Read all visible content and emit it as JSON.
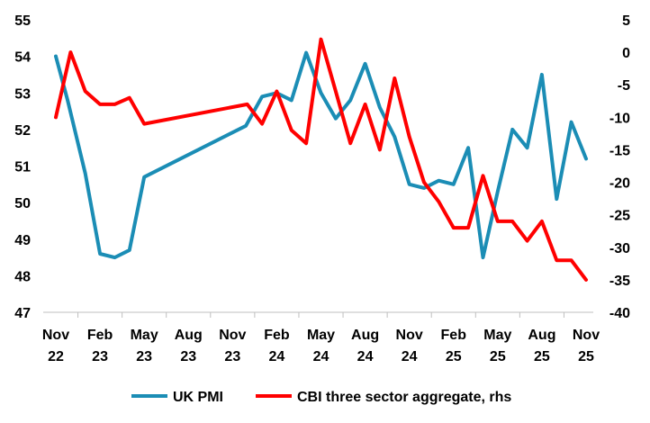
{
  "chart_data": {
    "type": "line",
    "title": "",
    "xlabel": "",
    "ylabel": "",
    "y_left_lim": [
      47,
      55
    ],
    "y_left_ticks": [
      "47",
      "48",
      "49",
      "50",
      "51",
      "52",
      "53",
      "54",
      "55"
    ],
    "y_right_lim": [
      -40,
      5
    ],
    "y_right_ticks": [
      "-40",
      "-35",
      "-30",
      "-25",
      "-20",
      "-15",
      "-10",
      "-5",
      "0",
      "5"
    ],
    "x_ticks": [
      {
        "line1": "Nov",
        "line2": "22",
        "month": 0
      },
      {
        "line1": "Feb",
        "line2": "23",
        "month": 3
      },
      {
        "line1": "May",
        "line2": "23",
        "month": 6
      },
      {
        "line1": "Aug",
        "line2": "23",
        "month": 9
      },
      {
        "line1": "Nov",
        "line2": "23",
        "month": 12
      },
      {
        "line1": "Feb",
        "line2": "24",
        "month": 15
      },
      {
        "line1": "May",
        "line2": "24",
        "month": 18
      },
      {
        "line1": "Aug",
        "line2": "24",
        "month": 21
      },
      {
        "line1": "Nov",
        "line2": "24",
        "month": 24
      },
      {
        "line1": "Feb",
        "line2": "25",
        "month": 27
      },
      {
        "line1": "May",
        "line2": "25",
        "month": 30
      },
      {
        "line1": "Aug",
        "line2": "25",
        "month": 33
      },
      {
        "line1": "Nov",
        "line2": "25",
        "month": 36
      }
    ],
    "series": [
      {
        "name": "UK PMI",
        "axis": "left",
        "color": "#1b8db5",
        "points": [
          {
            "x": 0,
            "y": 54.0
          },
          {
            "x": 0.8,
            "y": 52.8
          },
          {
            "x": 2.0,
            "y": 50.8
          },
          {
            "x": 3.0,
            "y": 48.6
          },
          {
            "x": 4.0,
            "y": 48.5
          },
          {
            "x": 5.0,
            "y": 48.7
          },
          {
            "x": 6.0,
            "y": 50.7
          },
          {
            "x": 12.9,
            "y": 52.1
          },
          {
            "x": 14.0,
            "y": 52.9
          },
          {
            "x": 15.0,
            "y": 53.0
          },
          {
            "x": 16.0,
            "y": 52.8
          },
          {
            "x": 17.0,
            "y": 54.1
          },
          {
            "x": 18.0,
            "y": 53.0
          },
          {
            "x": 19.0,
            "y": 52.3
          },
          {
            "x": 20.0,
            "y": 52.8
          },
          {
            "x": 21.0,
            "y": 53.8
          },
          {
            "x": 22.0,
            "y": 52.6
          },
          {
            "x": 23.0,
            "y": 51.8
          },
          {
            "x": 24.0,
            "y": 50.5
          },
          {
            "x": 25.0,
            "y": 50.4
          },
          {
            "x": 26.0,
            "y": 50.6
          },
          {
            "x": 27.0,
            "y": 50.5
          },
          {
            "x": 28.0,
            "y": 51.5
          },
          {
            "x": 29.0,
            "y": 48.5
          },
          {
            "x": 30.0,
            "y": 50.3
          },
          {
            "x": 31.0,
            "y": 52.0
          },
          {
            "x": 32.0,
            "y": 51.5
          },
          {
            "x": 33.0,
            "y": 53.5
          },
          {
            "x": 34.0,
            "y": 50.1
          },
          {
            "x": 35.0,
            "y": 52.2
          },
          {
            "x": 36.0,
            "y": 51.2
          }
        ]
      },
      {
        "name": "CBI three sector aggregate, rhs",
        "axis": "right",
        "color": "#ff0000",
        "points": [
          {
            "x": 0,
            "y": -10
          },
          {
            "x": 1.0,
            "y": 0
          },
          {
            "x": 2.0,
            "y": -6
          },
          {
            "x": 3.0,
            "y": -8
          },
          {
            "x": 4.0,
            "y": -8
          },
          {
            "x": 5.0,
            "y": -7
          },
          {
            "x": 6.0,
            "y": -11
          },
          {
            "x": 13.0,
            "y": -8
          },
          {
            "x": 14.0,
            "y": -11
          },
          {
            "x": 15.0,
            "y": -6
          },
          {
            "x": 16.0,
            "y": -12
          },
          {
            "x": 17.0,
            "y": -14
          },
          {
            "x": 18.0,
            "y": 2
          },
          {
            "x": 19.0,
            "y": -6
          },
          {
            "x": 20.0,
            "y": -14
          },
          {
            "x": 21.0,
            "y": -8
          },
          {
            "x": 22.0,
            "y": -15
          },
          {
            "x": 23.0,
            "y": -4
          },
          {
            "x": 24.0,
            "y": -13
          },
          {
            "x": 25.0,
            "y": -20
          },
          {
            "x": 26.0,
            "y": -23
          },
          {
            "x": 27.0,
            "y": -27
          },
          {
            "x": 28.0,
            "y": -27
          },
          {
            "x": 29.0,
            "y": -19
          },
          {
            "x": 30.0,
            "y": -26
          },
          {
            "x": 31.0,
            "y": -26
          },
          {
            "x": 32.0,
            "y": -29
          },
          {
            "x": 33.0,
            "y": -26
          },
          {
            "x": 34.0,
            "y": -32
          },
          {
            "x": 35.0,
            "y": -32
          },
          {
            "x": 36.0,
            "y": -35
          }
        ]
      }
    ],
    "legend_position": "bottom"
  }
}
